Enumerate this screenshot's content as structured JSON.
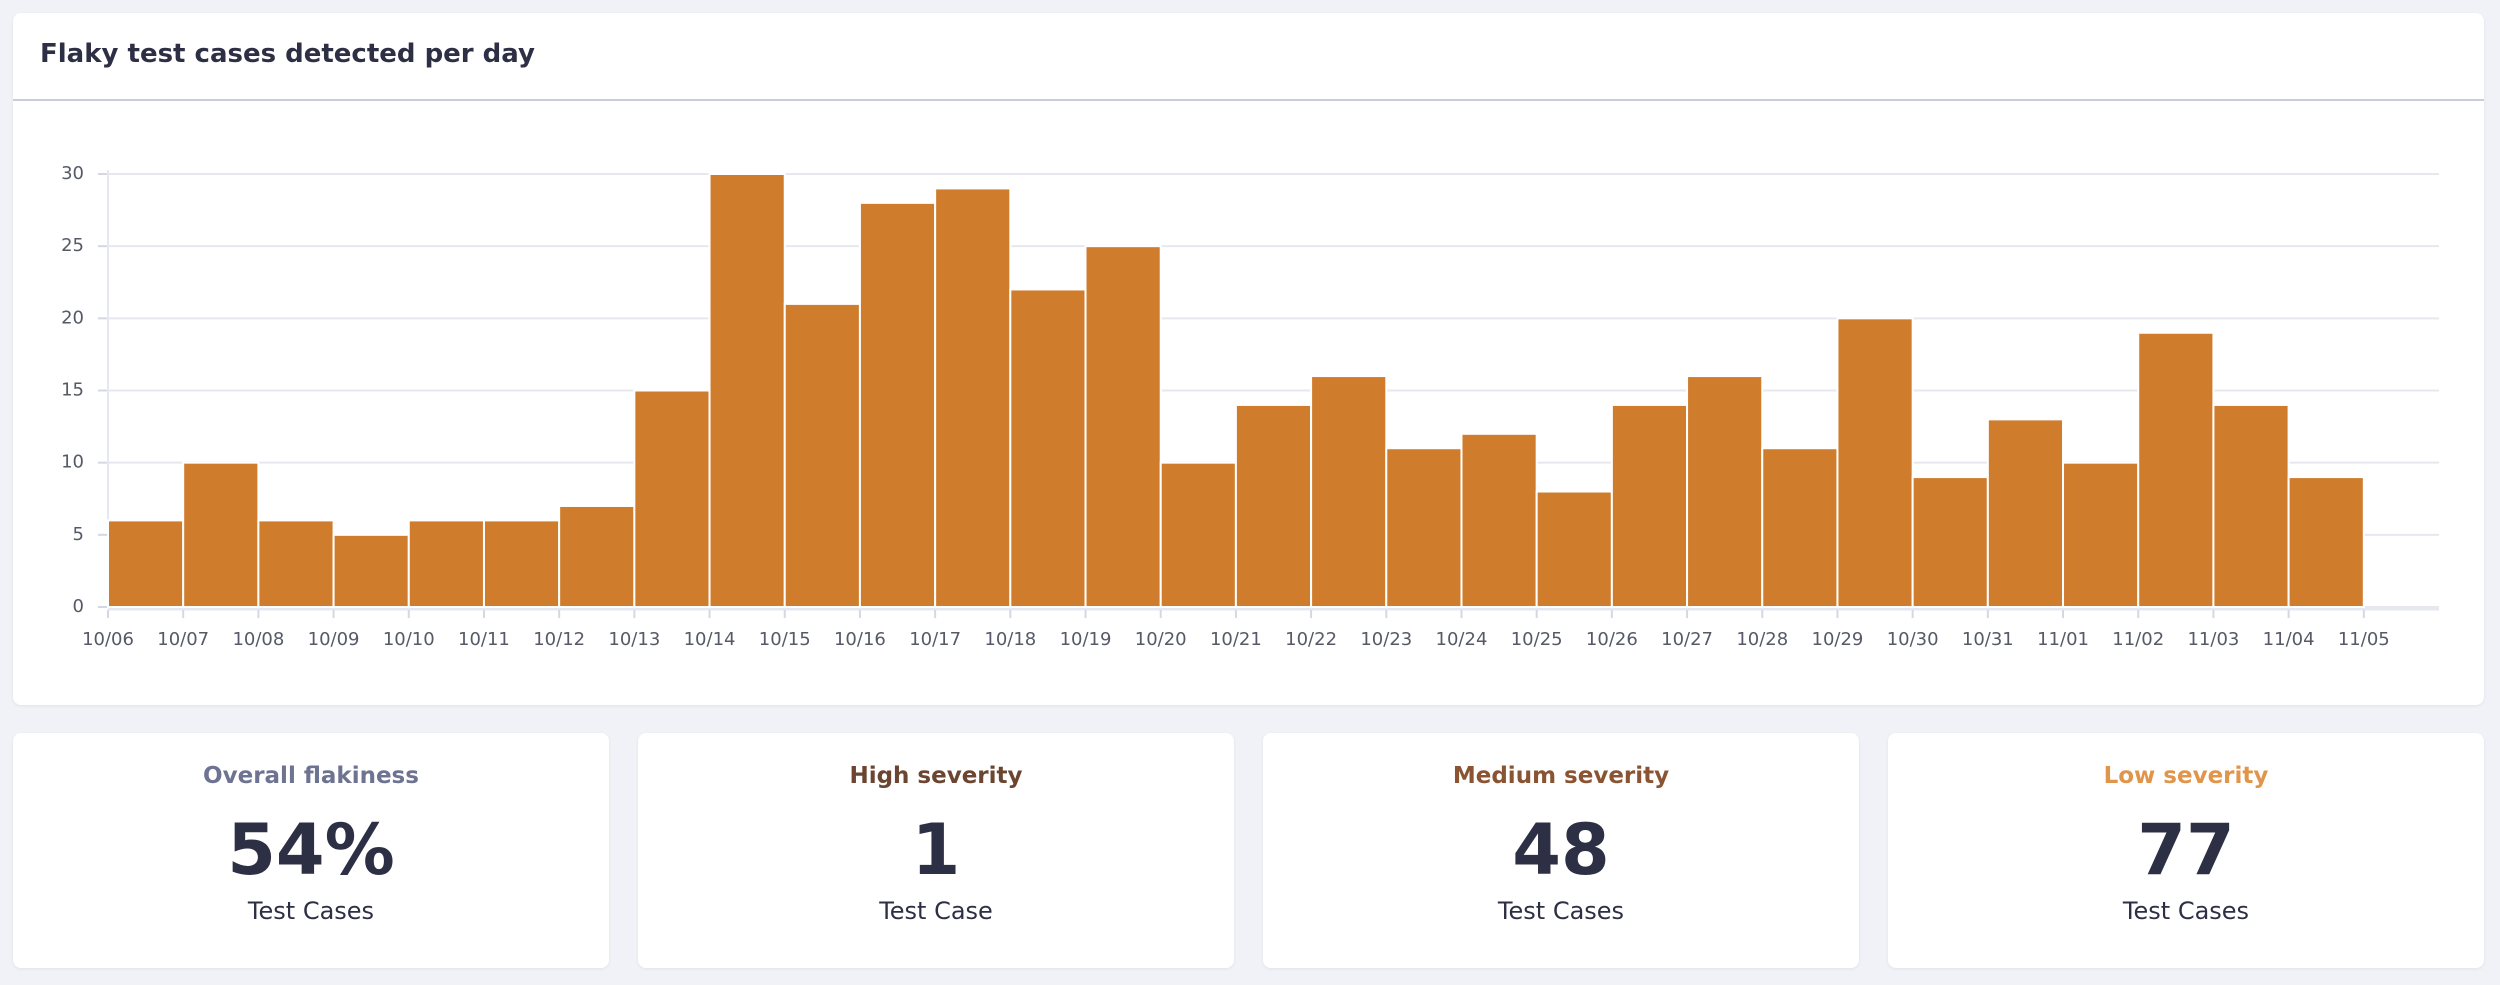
{
  "chart_data": {
    "type": "bar",
    "title": "Flaky test cases detected per day",
    "categories": [
      "10/06",
      "10/07",
      "10/08",
      "10/09",
      "10/10",
      "10/11",
      "10/12",
      "10/13",
      "10/14",
      "10/15",
      "10/16",
      "10/17",
      "10/18",
      "10/19",
      "10/20",
      "10/21",
      "10/22",
      "10/23",
      "10/24",
      "10/25",
      "10/26",
      "10/27",
      "10/28",
      "10/29",
      "10/30",
      "10/31",
      "11/01",
      "11/02",
      "11/03",
      "11/04",
      "11/05"
    ],
    "values": [
      6,
      10,
      6,
      5,
      6,
      6,
      7,
      15,
      30,
      21,
      28,
      29,
      22,
      25,
      10,
      14,
      16,
      11,
      12,
      8,
      14,
      16,
      11,
      20,
      9,
      13,
      10,
      19,
      14,
      9,
      null
    ],
    "color": "#cf7c2d",
    "ylim": [
      0,
      30
    ],
    "yticks": [
      0,
      5,
      10,
      15,
      20,
      25,
      30
    ],
    "grid": true
  },
  "stats": [
    {
      "title": "Overall flakiness",
      "value": "54%",
      "caption": "Test Cases",
      "color": "#6d7391"
    },
    {
      "title": "High severity",
      "value": "1",
      "caption": "Test Case",
      "color": "#6b4530"
    },
    {
      "title": "Medium severity",
      "value": "48",
      "caption": "Test Cases",
      "color": "#8a5433"
    },
    {
      "title": "Low severity",
      "value": "77",
      "caption": "Test Cases",
      "color": "#e0954a"
    }
  ]
}
